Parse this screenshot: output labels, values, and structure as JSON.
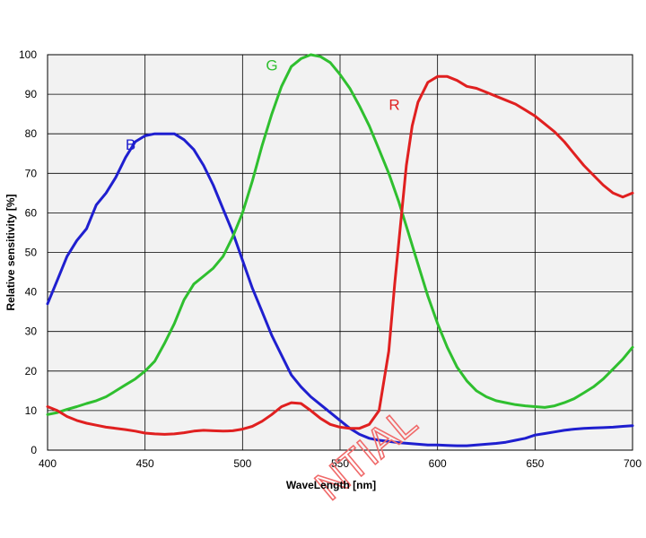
{
  "chart_data": {
    "type": "line",
    "title": "",
    "xlabel": "WaveLength [nm]",
    "ylabel": "Relative sensitivity [%]",
    "xlim": [
      400,
      700
    ],
    "ylim": [
      0,
      100
    ],
    "xticks": [
      400,
      450,
      500,
      550,
      600,
      650,
      700
    ],
    "yticks": [
      0,
      10,
      20,
      30,
      40,
      50,
      60,
      70,
      80,
      90,
      100
    ],
    "grid": true,
    "plot_background": "#f2f2f2",
    "grid_color": "#000000",
    "watermark": "NTIAL",
    "series": [
      {
        "name": "B",
        "color": "#1f1fcf",
        "label_at": [
          440,
          76
        ],
        "points": [
          [
            400,
            37
          ],
          [
            405,
            43
          ],
          [
            410,
            49
          ],
          [
            415,
            53
          ],
          [
            420,
            56
          ],
          [
            425,
            62
          ],
          [
            430,
            65
          ],
          [
            435,
            69
          ],
          [
            440,
            74
          ],
          [
            445,
            78
          ],
          [
            450,
            79.5
          ],
          [
            455,
            80
          ],
          [
            460,
            80
          ],
          [
            465,
            80
          ],
          [
            470,
            78.5
          ],
          [
            475,
            76
          ],
          [
            480,
            72
          ],
          [
            485,
            67
          ],
          [
            490,
            61
          ],
          [
            495,
            55
          ],
          [
            500,
            48
          ],
          [
            505,
            41
          ],
          [
            510,
            35
          ],
          [
            515,
            29
          ],
          [
            520,
            24
          ],
          [
            525,
            19
          ],
          [
            530,
            16
          ],
          [
            535,
            13.5
          ],
          [
            540,
            11.5
          ],
          [
            545,
            9.5
          ],
          [
            550,
            7.5
          ],
          [
            555,
            5.5
          ],
          [
            560,
            4
          ],
          [
            565,
            3
          ],
          [
            570,
            2.5
          ],
          [
            575,
            2.2
          ],
          [
            580,
            1.9
          ],
          [
            585,
            1.7
          ],
          [
            590,
            1.5
          ],
          [
            595,
            1.3
          ],
          [
            600,
            1.3
          ],
          [
            605,
            1.2
          ],
          [
            610,
            1.1
          ],
          [
            615,
            1.1
          ],
          [
            620,
            1.3
          ],
          [
            625,
            1.5
          ],
          [
            630,
            1.7
          ],
          [
            635,
            2
          ],
          [
            640,
            2.5
          ],
          [
            645,
            3
          ],
          [
            650,
            3.8
          ],
          [
            655,
            4.2
          ],
          [
            660,
            4.6
          ],
          [
            665,
            5
          ],
          [
            670,
            5.3
          ],
          [
            675,
            5.5
          ],
          [
            680,
            5.6
          ],
          [
            685,
            5.7
          ],
          [
            690,
            5.8
          ],
          [
            695,
            6
          ],
          [
            700,
            6.2
          ]
        ]
      },
      {
        "name": "G",
        "color": "#2fbf2f",
        "label_at": [
          512,
          96
        ],
        "points": [
          [
            400,
            9
          ],
          [
            405,
            9.5
          ],
          [
            410,
            10.3
          ],
          [
            415,
            11
          ],
          [
            420,
            11.8
          ],
          [
            425,
            12.5
          ],
          [
            430,
            13.5
          ],
          [
            435,
            15
          ],
          [
            440,
            16.5
          ],
          [
            445,
            18
          ],
          [
            450,
            20
          ],
          [
            455,
            22.5
          ],
          [
            460,
            27
          ],
          [
            465,
            32
          ],
          [
            470,
            38
          ],
          [
            475,
            42
          ],
          [
            480,
            44
          ],
          [
            485,
            46
          ],
          [
            490,
            49
          ],
          [
            495,
            54
          ],
          [
            500,
            60
          ],
          [
            505,
            68
          ],
          [
            510,
            77
          ],
          [
            515,
            85
          ],
          [
            520,
            92
          ],
          [
            525,
            97
          ],
          [
            530,
            99
          ],
          [
            535,
            100
          ],
          [
            540,
            99.5
          ],
          [
            545,
            98
          ],
          [
            550,
            95
          ],
          [
            555,
            91.5
          ],
          [
            560,
            87
          ],
          [
            565,
            82
          ],
          [
            570,
            76
          ],
          [
            575,
            70
          ],
          [
            580,
            63
          ],
          [
            585,
            55
          ],
          [
            590,
            47
          ],
          [
            595,
            39
          ],
          [
            600,
            32
          ],
          [
            605,
            26
          ],
          [
            610,
            21
          ],
          [
            615,
            17.5
          ],
          [
            620,
            15
          ],
          [
            625,
            13.5
          ],
          [
            630,
            12.5
          ],
          [
            635,
            12
          ],
          [
            640,
            11.5
          ],
          [
            645,
            11.2
          ],
          [
            650,
            11
          ],
          [
            655,
            10.8
          ],
          [
            660,
            11.2
          ],
          [
            665,
            12
          ],
          [
            670,
            13
          ],
          [
            675,
            14.5
          ],
          [
            680,
            16
          ],
          [
            685,
            18
          ],
          [
            690,
            20.5
          ],
          [
            695,
            23
          ],
          [
            700,
            26
          ]
        ]
      },
      {
        "name": "R",
        "color": "#e02020",
        "label_at": [
          575,
          86
        ],
        "points": [
          [
            400,
            11
          ],
          [
            405,
            10
          ],
          [
            410,
            8.5
          ],
          [
            415,
            7.5
          ],
          [
            420,
            6.8
          ],
          [
            425,
            6.3
          ],
          [
            430,
            5.8
          ],
          [
            435,
            5.5
          ],
          [
            440,
            5.2
          ],
          [
            445,
            4.8
          ],
          [
            450,
            4.3
          ],
          [
            455,
            4.1
          ],
          [
            460,
            4
          ],
          [
            465,
            4.1
          ],
          [
            470,
            4.4
          ],
          [
            475,
            4.8
          ],
          [
            480,
            5
          ],
          [
            485,
            4.9
          ],
          [
            490,
            4.8
          ],
          [
            495,
            4.9
          ],
          [
            500,
            5.3
          ],
          [
            505,
            6
          ],
          [
            510,
            7.3
          ],
          [
            515,
            9
          ],
          [
            520,
            11
          ],
          [
            525,
            12
          ],
          [
            530,
            11.8
          ],
          [
            535,
            10
          ],
          [
            540,
            8
          ],
          [
            545,
            6.5
          ],
          [
            550,
            5.8
          ],
          [
            555,
            5.5
          ],
          [
            560,
            5.5
          ],
          [
            565,
            6.5
          ],
          [
            570,
            10
          ],
          [
            575,
            25
          ],
          [
            578,
            42
          ],
          [
            581,
            57
          ],
          [
            584,
            72
          ],
          [
            587,
            82
          ],
          [
            590,
            88
          ],
          [
            595,
            93
          ],
          [
            600,
            94.5
          ],
          [
            605,
            94.5
          ],
          [
            610,
            93.5
          ],
          [
            615,
            92
          ],
          [
            620,
            91.5
          ],
          [
            625,
            90.5
          ],
          [
            630,
            89.5
          ],
          [
            635,
            88.5
          ],
          [
            640,
            87.5
          ],
          [
            645,
            86
          ],
          [
            650,
            84.5
          ],
          [
            655,
            82.5
          ],
          [
            660,
            80.5
          ],
          [
            665,
            78
          ],
          [
            670,
            75
          ],
          [
            675,
            72
          ],
          [
            680,
            69.5
          ],
          [
            685,
            67
          ],
          [
            690,
            65
          ],
          [
            695,
            64
          ],
          [
            700,
            65
          ]
        ]
      }
    ]
  }
}
